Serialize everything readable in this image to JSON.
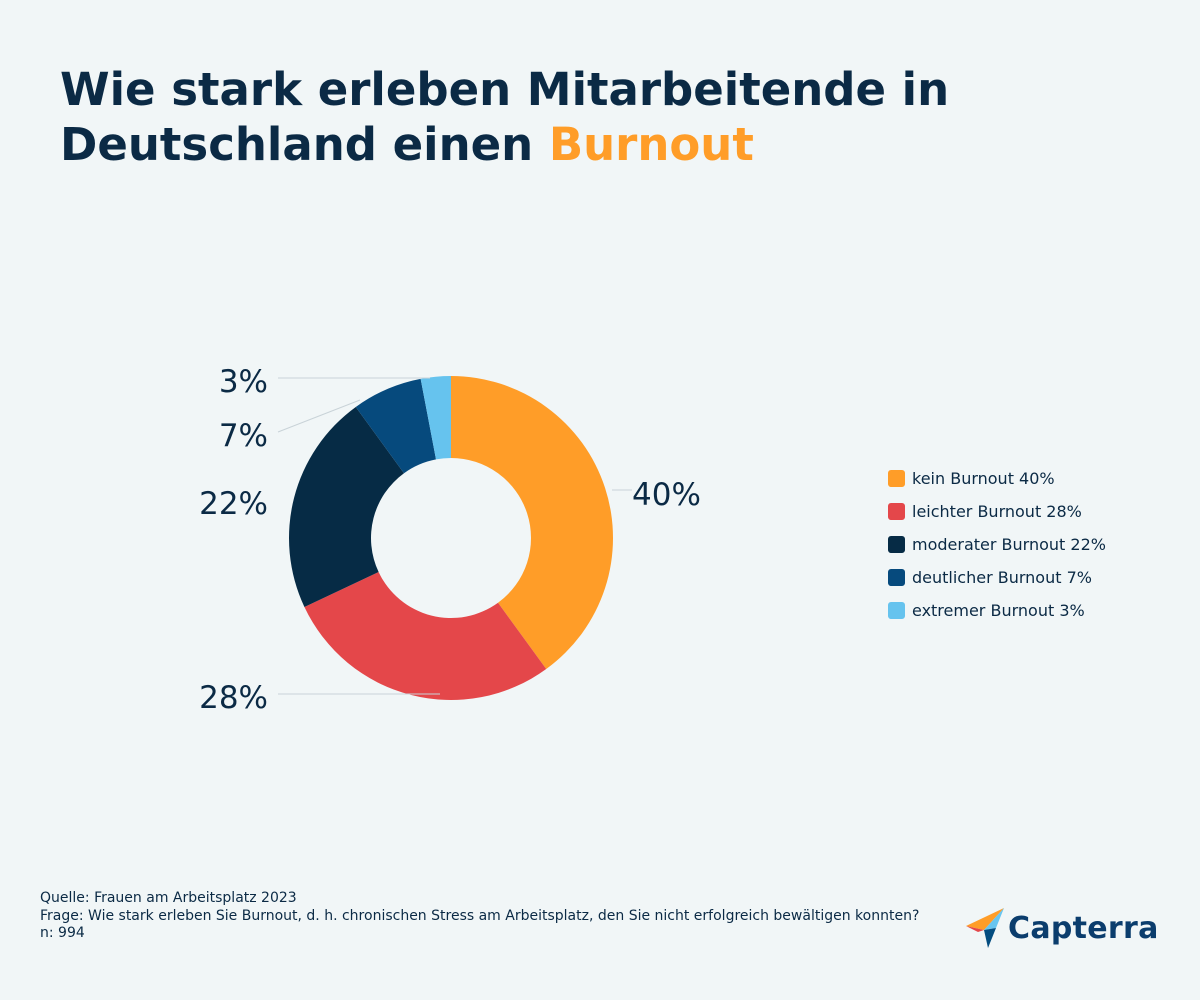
{
  "title": {
    "line1": "Wie stark erleben Mitarbeitende in",
    "line2_prefix": "Deutschland einen ",
    "line2_highlight": "Burnout"
  },
  "colors": {
    "title": "#0b2a45",
    "highlight": "#ff9d28",
    "background": "#f1f6f7"
  },
  "chart_data": {
    "type": "pie",
    "subtype": "donut",
    "title": "Wie stark erleben Mitarbeitende in Deutschland einen Burnout",
    "unit": "%",
    "legend_position": "right",
    "slices": [
      {
        "label": "kein Burnout",
        "value": 40,
        "color": "#ff9d28",
        "legend_text": "kein Burnout 40%",
        "data_label": "40%"
      },
      {
        "label": "leichter Burnout",
        "value": 28,
        "color": "#e4474a",
        "legend_text": "leichter Burnout 28%",
        "data_label": "28%"
      },
      {
        "label": "moderater Burnout",
        "value": 22,
        "color": "#062b45",
        "legend_text": "moderater Burnout 22%",
        "data_label": "22%"
      },
      {
        "label": "deutlicher Burnout",
        "value": 7,
        "color": "#064a7d",
        "legend_text": "deutlicher Burnout 7%",
        "data_label": "7%"
      },
      {
        "label": "extremer Burnout",
        "value": 3,
        "color": "#66c3ee",
        "legend_text": "extremer Burnout 3%",
        "data_label": "3%"
      }
    ]
  },
  "footer": {
    "source": "Quelle: Frauen am Arbeitsplatz 2023",
    "question": "Frage: Wie stark erleben Sie Burnout, d. h. chronischen Stress am Arbeitsplatz, den Sie nicht erfolgreich bewältigen konnten?",
    "n": "n: 994"
  },
  "brand": {
    "name": "Capterra",
    "icon": "capterra-logo-icon"
  }
}
